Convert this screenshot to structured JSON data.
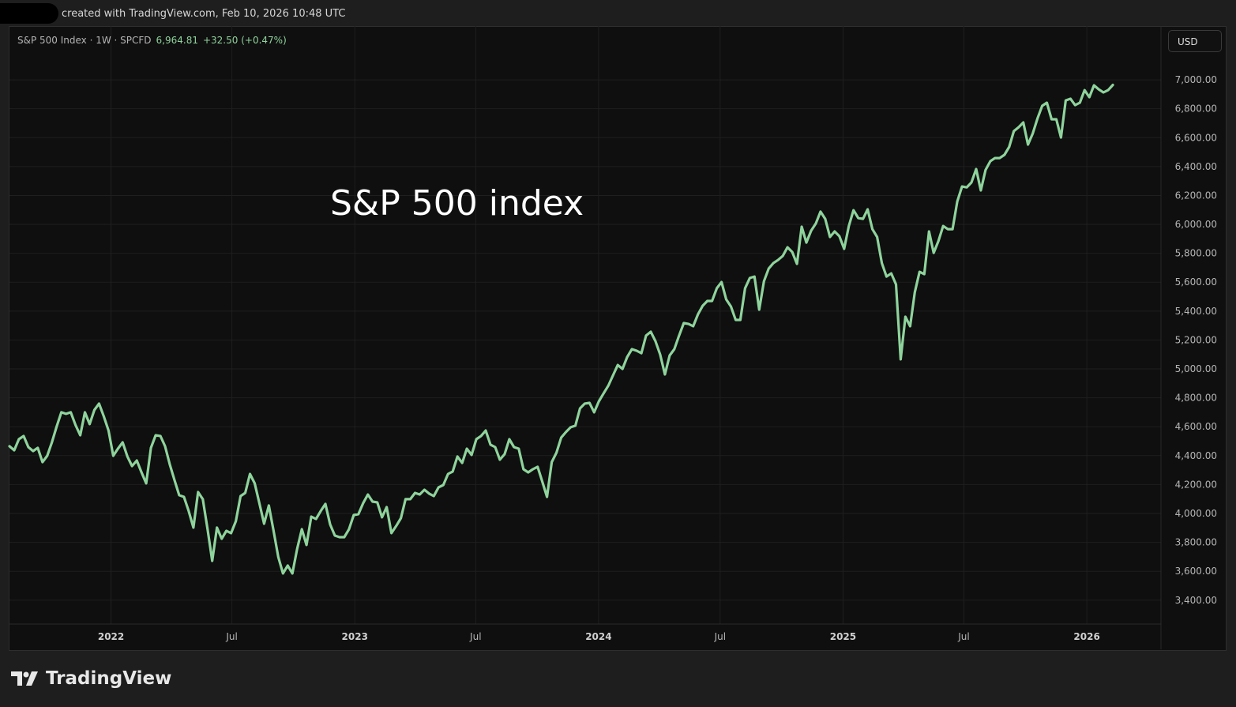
{
  "header": {
    "created_text": "created with TradingView.com, Feb 10, 2026 10:48 UTC"
  },
  "legend": {
    "symbol": "S&P 500 Index · 1W · SPCFD",
    "price": "6,964.81",
    "change": "+32.50 (+0.47%)"
  },
  "currency_button": "USD",
  "annotation": "S&P 500 index",
  "footer": {
    "brand": "TradingView"
  },
  "colors": {
    "line": "#8fd39c",
    "background": "#0f0f0f",
    "grid": "#1f1f1f",
    "text": "#b5b5b5"
  },
  "chart_data": {
    "type": "line",
    "interval": "1W",
    "x_first": "2021-08-02",
    "x_last": "2026-02-09",
    "xlim": [
      "2021-08-02",
      "2026-04-22"
    ],
    "ylim": [
      3060,
      7372
    ],
    "grid": true,
    "y_ticks": [
      7000,
      6800,
      6600,
      6400,
      6200,
      6000,
      5800,
      5600,
      5400,
      5200,
      5000,
      4800,
      4600,
      4400,
      4200,
      4000,
      3800,
      3600,
      3400
    ],
    "y_tick_labels": [
      "7,000.00",
      "6,800.00",
      "6,600.00",
      "6,400.00",
      "6,200.00",
      "6,000.00",
      "5,800.00",
      "5,600.00",
      "5,400.00",
      "5,200.00",
      "5,000.00",
      "4,800.00",
      "4,600.00",
      "4,400.00",
      "4,200.00",
      "4,000.00",
      "3,800.00",
      "3,600.00",
      "3,400.00"
    ],
    "x_ticks": [
      {
        "date": "2022-01-01",
        "label": "2022",
        "major": true
      },
      {
        "date": "2022-07-01",
        "label": "Jul",
        "major": false
      },
      {
        "date": "2023-01-01",
        "label": "2023",
        "major": true
      },
      {
        "date": "2023-07-01",
        "label": "Jul",
        "major": false
      },
      {
        "date": "2024-01-01",
        "label": "2024",
        "major": true
      },
      {
        "date": "2024-07-01",
        "label": "Jul",
        "major": false
      },
      {
        "date": "2025-01-01",
        "label": "2025",
        "major": true
      },
      {
        "date": "2025-07-01",
        "label": "Jul",
        "major": false
      },
      {
        "date": "2026-01-01",
        "label": "2026",
        "major": true
      }
    ],
    "values": [
      4465,
      4437,
      4514,
      4536,
      4459,
      4432,
      4454,
      4355,
      4399,
      4492,
      4601,
      4700,
      4689,
      4700,
      4612,
      4541,
      4700,
      4618,
      4716,
      4760,
      4672,
      4574,
      4399,
      4448,
      4492,
      4394,
      4328,
      4366,
      4284,
      4208,
      4454,
      4541,
      4536,
      4465,
      4339,
      4230,
      4126,
      4115,
      4017,
      3902,
      4148,
      4099,
      3891,
      3672,
      3902,
      3825,
      3880,
      3864,
      3946,
      4120,
      4142,
      4273,
      4208,
      4071,
      3929,
      4055,
      3880,
      3700,
      3585,
      3640,
      3585,
      3754,
      3891,
      3782,
      3978,
      3962,
      4017,
      4066,
      3924,
      3847,
      3836,
      3836,
      3891,
      3989,
      3995,
      4071,
      4131,
      4082,
      4077,
      3973,
      4044,
      3864,
      3913,
      3967,
      4099,
      4099,
      4142,
      4131,
      4164,
      4137,
      4120,
      4181,
      4197,
      4273,
      4290,
      4394,
      4350,
      4448,
      4405,
      4514,
      4536,
      4574,
      4476,
      4459,
      4372,
      4410,
      4514,
      4459,
      4448,
      4306,
      4284,
      4306,
      4323,
      4219,
      4115,
      4355,
      4421,
      4525,
      4563,
      4596,
      4607,
      4727,
      4760,
      4765,
      4700,
      4776,
      4831,
      4885,
      4956,
      5027,
      5000,
      5082,
      5137,
      5126,
      5109,
      5230,
      5257,
      5191,
      5099,
      4962,
      5093,
      5137,
      5230,
      5317,
      5311,
      5295,
      5377,
      5437,
      5470,
      5470,
      5558,
      5601,
      5481,
      5432,
      5339,
      5339,
      5558,
      5629,
      5639,
      5410,
      5607,
      5694,
      5732,
      5754,
      5782,
      5842,
      5809,
      5727,
      5984,
      5874,
      5956,
      6006,
      6088,
      6038,
      5913,
      5951,
      5918,
      5831,
      5989,
      6098,
      6044,
      6038,
      6104,
      5967,
      5913,
      5732,
      5639,
      5661,
      5585,
      5066,
      5361,
      5295,
      5530,
      5672,
      5656,
      5951,
      5803,
      5885,
      5989,
      5967,
      5967,
      6159,
      6262,
      6256,
      6290,
      6383,
      6235,
      6377,
      6437,
      6459,
      6459,
      6481,
      6536,
      6645,
      6672,
      6705,
      6552,
      6628,
      6732,
      6820,
      6842,
      6727,
      6727,
      6601,
      6858,
      6869,
      6825,
      6842,
      6929,
      6880,
      6962,
      6934,
      6913,
      6929,
      6965
    ]
  }
}
